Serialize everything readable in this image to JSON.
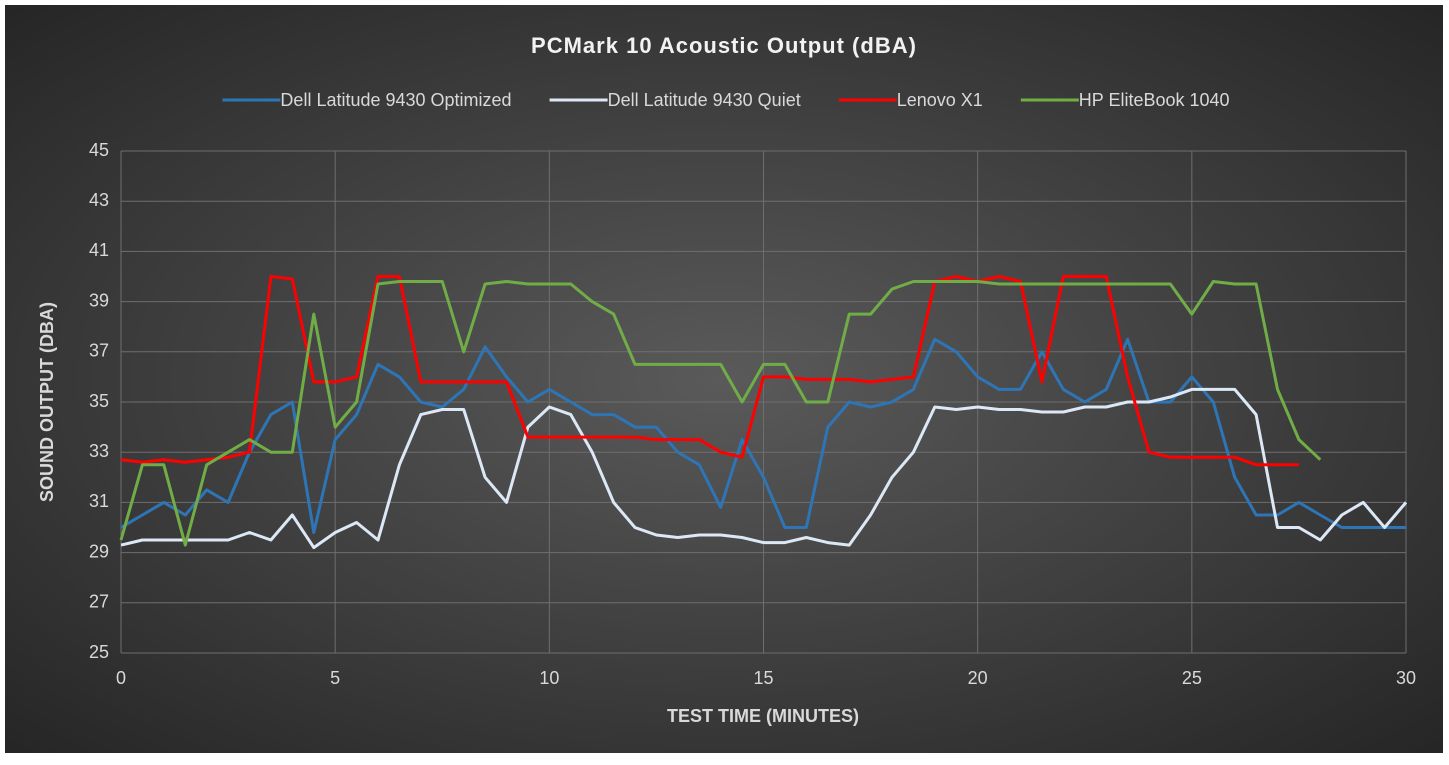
{
  "chart_data": {
    "type": "line",
    "title": "PCMark 10 Acoustic Output (dBA)",
    "x_label": "TEST TIME (MINUTES)",
    "y_label": "SOUND OUTPUT (DBA)",
    "x": [
      0,
      0.5,
      1,
      1.5,
      2,
      2.5,
      3,
      3.5,
      4,
      4.5,
      5,
      5.5,
      6,
      6.5,
      7,
      7.5,
      8,
      8.5,
      9,
      9.5,
      10,
      10.5,
      11,
      11.5,
      12,
      12.5,
      13,
      13.5,
      14,
      14.5,
      15,
      15.5,
      16,
      16.5,
      17,
      17.5,
      18,
      18.5,
      19,
      19.5,
      20,
      20.5,
      21,
      21.5,
      22,
      22.5,
      23,
      23.5,
      24,
      24.5,
      25,
      25.5,
      26,
      26.5,
      27,
      27.5,
      28,
      28.5,
      29,
      29.5,
      30
    ],
    "series": [
      {
        "name": "Dell Latitude 9430 Optimized",
        "color": "#2e75b6",
        "values": [
          30,
          30.5,
          31,
          30.5,
          31.5,
          31,
          33,
          34.5,
          35,
          29.8,
          33.5,
          34.5,
          36.5,
          36,
          35,
          34.8,
          35.5,
          37.2,
          36,
          35,
          35.5,
          35,
          34.5,
          34.5,
          34,
          34,
          33,
          32.5,
          30.8,
          33.5,
          32,
          30,
          30,
          34,
          35,
          34.8,
          35,
          35.5,
          37.5,
          37,
          36,
          35.5,
          35.5,
          37,
          35.5,
          35,
          35.5,
          37.5,
          35,
          35,
          36,
          35,
          32,
          30.5,
          30.5,
          31,
          30.5,
          30,
          30,
          30,
          30
        ]
      },
      {
        "name": "Dell Latitude 9430 Quiet",
        "color": "#dde8f6",
        "values": [
          29.3,
          29.5,
          29.5,
          29.5,
          29.5,
          29.5,
          29.8,
          29.5,
          30.5,
          29.2,
          29.8,
          30.2,
          29.5,
          32.5,
          34.5,
          34.7,
          34.7,
          32,
          31,
          34,
          34.8,
          34.5,
          33,
          31,
          30,
          29.7,
          29.6,
          29.7,
          29.7,
          29.6,
          29.4,
          29.4,
          29.6,
          29.4,
          29.3,
          30.5,
          32,
          33,
          34.8,
          34.7,
          34.8,
          34.7,
          34.7,
          34.6,
          34.6,
          34.8,
          34.8,
          35,
          35,
          35.2,
          35.5,
          35.5,
          35.5,
          34.5,
          30,
          30,
          29.5,
          30.5,
          31,
          30,
          31
        ]
      },
      {
        "name": "Lenovo X1",
        "color": "#ff0000",
        "values": [
          32.7,
          32.6,
          32.7,
          32.6,
          32.7,
          32.8,
          33,
          40,
          39.9,
          35.8,
          35.8,
          36,
          40,
          40,
          35.8,
          35.8,
          35.8,
          35.8,
          35.8,
          33.6,
          33.6,
          33.6,
          33.6,
          33.6,
          33.6,
          33.5,
          33.5,
          33.5,
          33,
          32.8,
          36,
          36,
          35.9,
          35.9,
          35.9,
          35.8,
          35.9,
          36,
          39.8,
          40,
          39.8,
          40,
          39.8,
          35.8,
          40,
          40,
          40,
          36,
          33,
          32.8,
          32.8,
          32.8,
          32.8,
          32.5,
          32.5,
          32.5,
          null,
          null,
          null,
          null,
          null
        ]
      },
      {
        "name": "HP EliteBook 1040",
        "color": "#70ad47",
        "values": [
          29.5,
          32.5,
          32.5,
          29.3,
          32.5,
          33,
          33.5,
          33,
          33,
          38.5,
          34,
          35,
          39.7,
          39.8,
          39.8,
          39.8,
          37,
          39.7,
          39.8,
          39.7,
          39.7,
          39.7,
          39,
          38.5,
          36.5,
          36.5,
          36.5,
          36.5,
          36.5,
          35,
          36.5,
          36.5,
          35,
          35,
          38.5,
          38.5,
          39.5,
          39.8,
          39.8,
          39.8,
          39.8,
          39.7,
          39.7,
          39.7,
          39.7,
          39.7,
          39.7,
          39.7,
          39.7,
          39.7,
          38.5,
          39.8,
          39.7,
          39.7,
          35.5,
          33.5,
          32.7,
          null,
          null,
          null,
          null
        ]
      }
    ],
    "xlim": [
      0,
      30
    ],
    "xticks": [
      0,
      5,
      10,
      15,
      20,
      25,
      30
    ],
    "ylim": [
      25,
      45
    ],
    "yticks": [
      25,
      27,
      29,
      31,
      33,
      35,
      37,
      39,
      41,
      43,
      45
    ],
    "grid": true,
    "legend": "top"
  }
}
